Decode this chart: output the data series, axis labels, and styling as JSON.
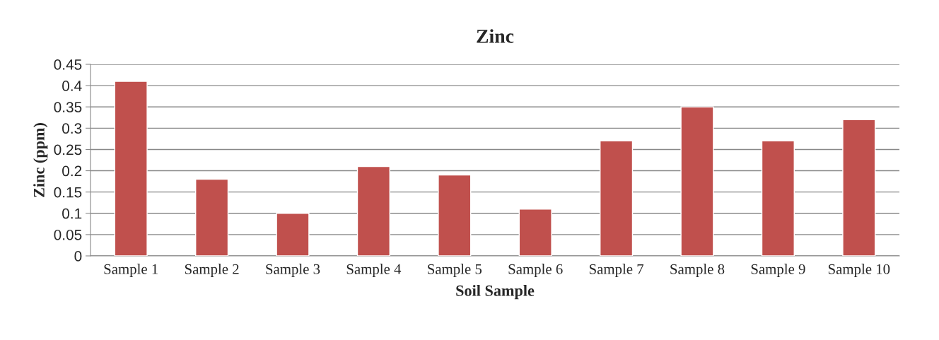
{
  "chart_data": {
    "type": "bar",
    "title": "Zinc",
    "xlabel": "Soil Sample",
    "ylabel": "Zinc (ppm)",
    "categories": [
      "Sample 1",
      "Sample 2",
      "Sample 3",
      "Sample 4",
      "Sample 5",
      "Sample 6",
      "Sample 7",
      "Sample 8",
      "Sample 9",
      "Sample 10"
    ],
    "values": [
      0.41,
      0.18,
      0.1,
      0.21,
      0.19,
      0.11,
      0.27,
      0.35,
      0.27,
      0.32
    ],
    "color": "#c0504d",
    "ylim": [
      0,
      0.45
    ],
    "yticks": [
      {
        "value": 0,
        "label": "0"
      },
      {
        "value": 0.05,
        "label": "0.05"
      },
      {
        "value": 0.1,
        "label": "0.1"
      },
      {
        "value": 0.15,
        "label": "0.15"
      },
      {
        "value": 0.2,
        "label": "0.2"
      },
      {
        "value": 0.25,
        "label": "0.25"
      },
      {
        "value": 0.3,
        "label": "0.3"
      },
      {
        "value": 0.35,
        "label": "0.35"
      },
      {
        "value": 0.4,
        "label": "0.4"
      },
      {
        "value": 0.45,
        "label": "0.45"
      }
    ],
    "grid": "y",
    "legend": false
  }
}
